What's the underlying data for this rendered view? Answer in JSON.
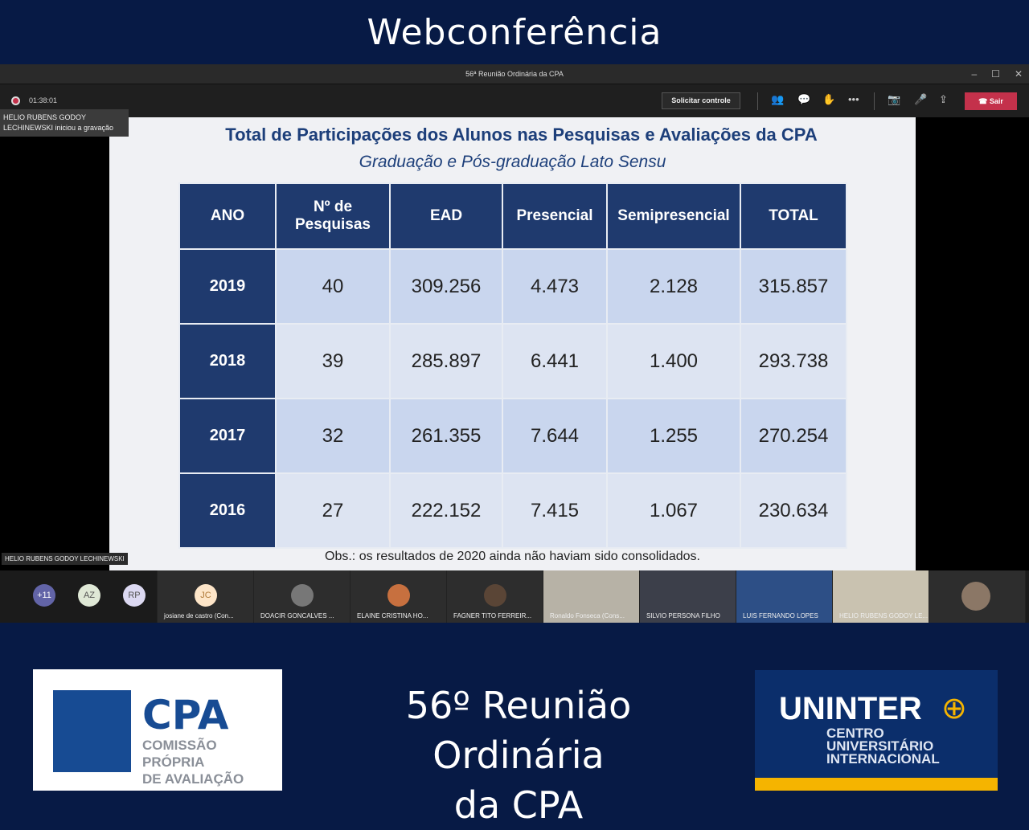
{
  "banner": {
    "title": "Webconferência"
  },
  "window": {
    "title": "56ª Reunião Ordinária da CPA",
    "minimize": "–",
    "maximize": "☐",
    "close": "✕"
  },
  "toolbar": {
    "timer": "01:38:01",
    "request_control": "Solicitar controle",
    "leave": "Sair",
    "icons": [
      "participants-icon",
      "chat-icon",
      "raise-hand-icon",
      "more-icon",
      "camera-off-icon",
      "mic-off-icon",
      "share-screen-icon"
    ]
  },
  "toast": {
    "text": "HELIO RUBENS GODOY LECHINEWSKI iniciou a gravação"
  },
  "presenter_tag": "HELIO RUBENS GODOY LECHINEWSKI",
  "slide": {
    "title": "Total de Participações dos Alunos nas Pesquisas e Avaliações da CPA",
    "subtitle": "Graduação e Pós-graduação Lato Sensu",
    "headers": [
      "ANO",
      "Nº de Pesquisas",
      "EAD",
      "Presencial",
      "Semipresencial",
      "TOTAL"
    ],
    "rows": [
      [
        "2019",
        "40",
        "309.256",
        "4.473",
        "2.128",
        "315.857"
      ],
      [
        "2018",
        "39",
        "285.897",
        "6.441",
        "1.400",
        "293.738"
      ],
      [
        "2017",
        "32",
        "261.355",
        "7.644",
        "1.255",
        "270.254"
      ],
      [
        "2016",
        "27",
        "222.152",
        "7.415",
        "1.067",
        "230.634"
      ]
    ],
    "note": "Obs.: os resultados de 2020 ainda não haviam sido consolidados."
  },
  "participants": {
    "avatars": [
      {
        "initials": "+11",
        "color": "#6264a7"
      },
      {
        "initials": "AZ",
        "color": "#dfe8d6"
      },
      {
        "initials": "RP",
        "color": "#dcd9f2"
      }
    ],
    "tiles": [
      {
        "name": "josiane de castro (Con...",
        "initials": "JC"
      },
      {
        "name": "DOACIR GONCALVES ..."
      },
      {
        "name": "ELAINE CRISTINA HO..."
      },
      {
        "name": "FAGNER TITO FERREIR..."
      },
      {
        "name": "Ronaldo Fonseca (Cons..."
      },
      {
        "name": "SILVIO PERSONA FILHO"
      },
      {
        "name": "LUIS FERNANDO LOPES"
      },
      {
        "name": "HELIO RUBENS GODOY LE..."
      },
      {
        "name": ""
      }
    ]
  },
  "footer": {
    "cpa_logo": {
      "title": "CPA",
      "line1": "COMISSÃO PRÓPRIA",
      "line2": "DE AVALIAÇÃO"
    },
    "meeting_title_1": "56º Reunião Ordinária",
    "meeting_title_2": "da CPA",
    "uninter_logo": {
      "title": "UNINTER",
      "line1": "CENTRO",
      "line2": "UNIVERSITÁRIO",
      "line3": "INTERNACIONAL"
    }
  }
}
